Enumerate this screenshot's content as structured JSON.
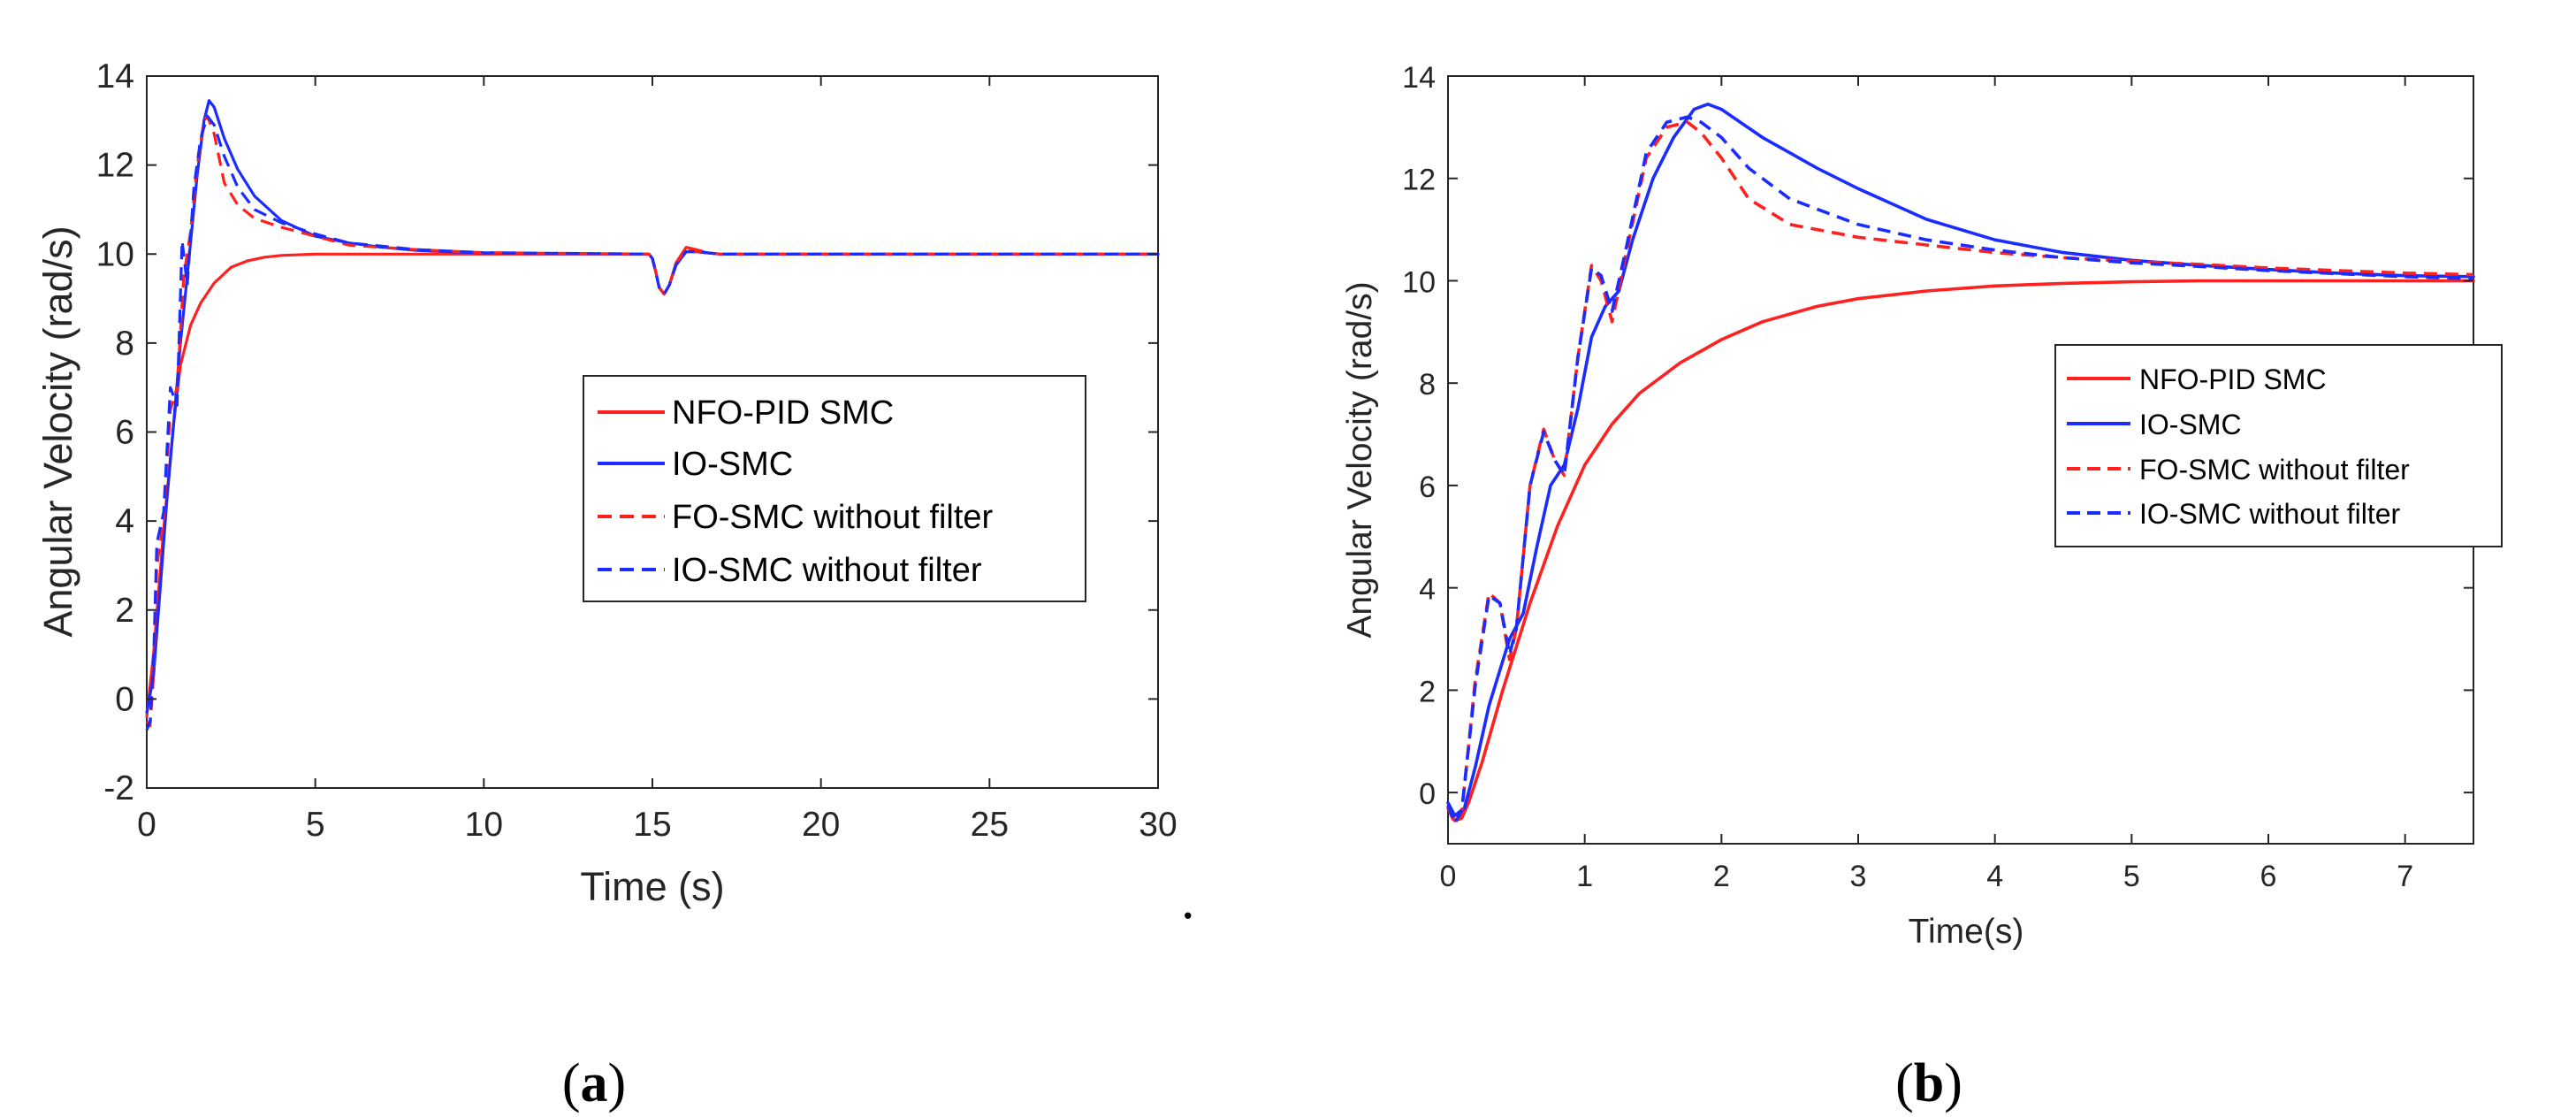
{
  "colors": {
    "red": "#ff2020",
    "blue": "#1a2cff",
    "axis": "#262626"
  },
  "stray_mark": ".",
  "chart_data": [
    {
      "id": "a",
      "type": "line",
      "caption": {
        "open": "(",
        "letter": "a",
        "close": ")"
      },
      "xlabel": "Time (s)",
      "ylabel": "Angular Velocity  (rad/s)",
      "xlim": [
        0,
        30
      ],
      "ylim": [
        -2,
        14
      ],
      "xticks": [
        0,
        5,
        10,
        15,
        20,
        25,
        30
      ],
      "yticks": [
        -2,
        0,
        2,
        4,
        6,
        8,
        10,
        12,
        14
      ],
      "legend_position": "center-right",
      "series": [
        {
          "name": "NFO-PID SMC",
          "color": "#ff2020",
          "dash": "solid",
          "x": [
            0,
            0.2,
            0.5,
            0.8,
            1.0,
            1.3,
            1.6,
            2.0,
            2.5,
            3.0,
            3.5,
            4.0,
            5.0,
            6.0,
            8.0,
            10.0,
            14.9,
            15.0,
            15.1,
            15.2,
            15.35,
            15.5,
            15.7,
            16.0,
            16.3,
            16.6,
            17.0,
            20.0,
            25.0,
            30.0
          ],
          "y": [
            -0.4,
            1.0,
            3.8,
            6.2,
            7.5,
            8.4,
            8.9,
            9.35,
            9.7,
            9.85,
            9.93,
            9.97,
            10.0,
            10.0,
            10.0,
            10.0,
            10.0,
            9.9,
            9.6,
            9.25,
            9.1,
            9.3,
            9.8,
            10.15,
            10.1,
            10.03,
            10.0,
            10.0,
            10.0,
            10.0
          ]
        },
        {
          "name": "IO-SMC",
          "color": "#1a2cff",
          "dash": "solid",
          "x": [
            0,
            0.2,
            0.4,
            0.6,
            0.8,
            1.0,
            1.2,
            1.5,
            1.7,
            1.85,
            2.0,
            2.3,
            2.7,
            3.2,
            4.0,
            5.0,
            6.0,
            7.0,
            8.0,
            10.0,
            14.9,
            15.0,
            15.1,
            15.2,
            15.35,
            15.5,
            15.7,
            16.0,
            16.3,
            17.0,
            20.0,
            25.0,
            30.0
          ],
          "y": [
            -0.3,
            0.5,
            2.5,
            4.5,
            6.2,
            8.0,
            9.5,
            11.8,
            13.0,
            13.45,
            13.3,
            12.6,
            11.9,
            11.3,
            10.75,
            10.4,
            10.25,
            10.15,
            10.08,
            10.02,
            10.0,
            9.9,
            9.6,
            9.25,
            9.1,
            9.3,
            9.75,
            10.05,
            10.05,
            10.0,
            10.0,
            10.0,
            10.0
          ]
        },
        {
          "name": "FO-SMC without filter",
          "color": "#ff2020",
          "dash": "dashed",
          "x": [
            0,
            0.1,
            0.2,
            0.3,
            0.5,
            0.7,
            0.9,
            1.1,
            1.3,
            1.5,
            1.7,
            1.8,
            2.0,
            2.3,
            2.7,
            3.2,
            4.0,
            5.0,
            6.0,
            8.0,
            10.0,
            14.9,
            15.0,
            15.1,
            15.2,
            15.35,
            15.5,
            15.7,
            16.0,
            16.3,
            17.0,
            20.0,
            25.0,
            30.0
          ],
          "y": [
            -0.5,
            -0.6,
            0.5,
            3.0,
            4.0,
            6.5,
            7.0,
            9.5,
            10.5,
            12.0,
            13.0,
            13.1,
            12.7,
            11.6,
            11.1,
            10.8,
            10.6,
            10.4,
            10.2,
            10.1,
            10.03,
            10.0,
            9.9,
            9.6,
            9.25,
            9.1,
            9.3,
            9.8,
            10.1,
            10.05,
            10.0,
            10.0,
            10.0,
            10.0
          ]
        },
        {
          "name": "IO-SMC without filter",
          "color": "#1a2cff",
          "dash": "dashed",
          "x": [
            0,
            0.1,
            0.2,
            0.3,
            0.5,
            0.7,
            0.9,
            1.05,
            1.2,
            1.4,
            1.6,
            1.8,
            2.0,
            2.3,
            2.7,
            3.2,
            4.0,
            5.0,
            6.0,
            8.0,
            10.0,
            14.9,
            15.0,
            15.1,
            15.2,
            15.35,
            15.5,
            15.7,
            16.0,
            16.3,
            17.0,
            20.0,
            25.0,
            30.0
          ],
          "y": [
            -0.7,
            -0.5,
            0.8,
            3.5,
            4.2,
            7.0,
            6.6,
            10.3,
            9.3,
            11.5,
            12.6,
            13.1,
            12.9,
            12.2,
            11.5,
            11.0,
            10.7,
            10.45,
            10.25,
            10.1,
            10.03,
            10.0,
            9.9,
            9.6,
            9.25,
            9.1,
            9.3,
            9.75,
            10.05,
            10.05,
            10.0,
            10.0,
            10.0,
            10.0
          ]
        }
      ]
    },
    {
      "id": "b",
      "type": "line",
      "caption": {
        "open": "(",
        "letter": "b",
        "close": ")"
      },
      "xlabel": "Time(s)",
      "ylabel": "Angular Velocity  (rad/s)",
      "xlim": [
        0,
        7.5
      ],
      "ylim": [
        -1,
        14
      ],
      "xticks": [
        0,
        1,
        2,
        3,
        4,
        5,
        6,
        7
      ],
      "yticks": [
        0,
        2,
        4,
        6,
        8,
        10,
        12,
        14
      ],
      "legend_position": "center-right",
      "series": [
        {
          "name": "NFO-PID SMC",
          "color": "#ff2020",
          "dash": "solid",
          "x": [
            0,
            0.05,
            0.1,
            0.15,
            0.25,
            0.4,
            0.6,
            0.8,
            1.0,
            1.2,
            1.4,
            1.7,
            2.0,
            2.3,
            2.7,
            3.0,
            3.5,
            4.0,
            4.5,
            5.0,
            5.5,
            6.0,
            6.5,
            7.0,
            7.5
          ],
          "y": [
            -0.3,
            -0.55,
            -0.5,
            -0.2,
            0.6,
            2.0,
            3.7,
            5.2,
            6.4,
            7.2,
            7.8,
            8.4,
            8.85,
            9.2,
            9.5,
            9.65,
            9.8,
            9.9,
            9.95,
            9.98,
            10.0,
            10.0,
            10.0,
            10.0,
            10.0
          ]
        },
        {
          "name": "IO-SMC",
          "color": "#1a2cff",
          "dash": "solid",
          "x": [
            0,
            0.05,
            0.12,
            0.2,
            0.3,
            0.45,
            0.55,
            0.65,
            0.75,
            0.85,
            0.95,
            1.05,
            1.15,
            1.25,
            1.35,
            1.5,
            1.65,
            1.8,
            1.9,
            2.0,
            2.3,
            2.7,
            3.0,
            3.5,
            4.0,
            4.5,
            5.0,
            5.5,
            6.0,
            6.5,
            7.0,
            7.5
          ],
          "y": [
            -0.2,
            -0.45,
            -0.3,
            0.5,
            1.7,
            3.0,
            3.5,
            4.8,
            6.0,
            6.4,
            7.5,
            8.9,
            9.5,
            9.8,
            10.8,
            12.0,
            12.8,
            13.35,
            13.45,
            13.35,
            12.8,
            12.2,
            11.8,
            11.2,
            10.8,
            10.55,
            10.4,
            10.3,
            10.22,
            10.15,
            10.1,
            10.08
          ]
        },
        {
          "name": "FO-SMC without filter",
          "color": "#ff2020",
          "dash": "dashed",
          "x": [
            0,
            0.05,
            0.1,
            0.2,
            0.3,
            0.38,
            0.45,
            0.5,
            0.6,
            0.7,
            0.78,
            0.85,
            0.95,
            1.05,
            1.12,
            1.2,
            1.3,
            1.45,
            1.6,
            1.75,
            1.85,
            2.0,
            2.2,
            2.5,
            3.0,
            3.5,
            4.0,
            4.5,
            5.0,
            5.5,
            6.0,
            6.5,
            7.0,
            7.5
          ],
          "y": [
            -0.3,
            -0.6,
            -0.4,
            2.2,
            3.9,
            3.7,
            2.6,
            3.2,
            6.0,
            7.1,
            6.5,
            6.2,
            8.5,
            10.3,
            10.0,
            9.2,
            10.5,
            12.4,
            13.0,
            13.1,
            12.9,
            12.4,
            11.6,
            11.1,
            10.85,
            10.7,
            10.55,
            10.45,
            10.38,
            10.32,
            10.25,
            10.2,
            10.15,
            10.12
          ]
        },
        {
          "name": "IO-SMC without filter",
          "color": "#1a2cff",
          "dash": "dashed",
          "x": [
            0,
            0.05,
            0.1,
            0.2,
            0.3,
            0.38,
            0.45,
            0.5,
            0.6,
            0.7,
            0.78,
            0.85,
            0.95,
            1.05,
            1.12,
            1.2,
            1.3,
            1.45,
            1.6,
            1.75,
            1.85,
            2.0,
            2.2,
            2.5,
            3.0,
            3.5,
            4.0,
            4.5,
            5.0,
            5.5,
            6.0,
            6.5,
            7.0,
            7.5
          ],
          "y": [
            -0.25,
            -0.6,
            -0.35,
            2.1,
            3.85,
            3.7,
            2.7,
            3.2,
            6.0,
            7.05,
            6.5,
            6.2,
            8.5,
            10.25,
            10.1,
            9.4,
            10.6,
            12.5,
            13.1,
            13.2,
            13.1,
            12.8,
            12.2,
            11.6,
            11.1,
            10.8,
            10.6,
            10.45,
            10.35,
            10.28,
            10.2,
            10.14,
            10.08,
            10.04
          ]
        }
      ]
    }
  ]
}
